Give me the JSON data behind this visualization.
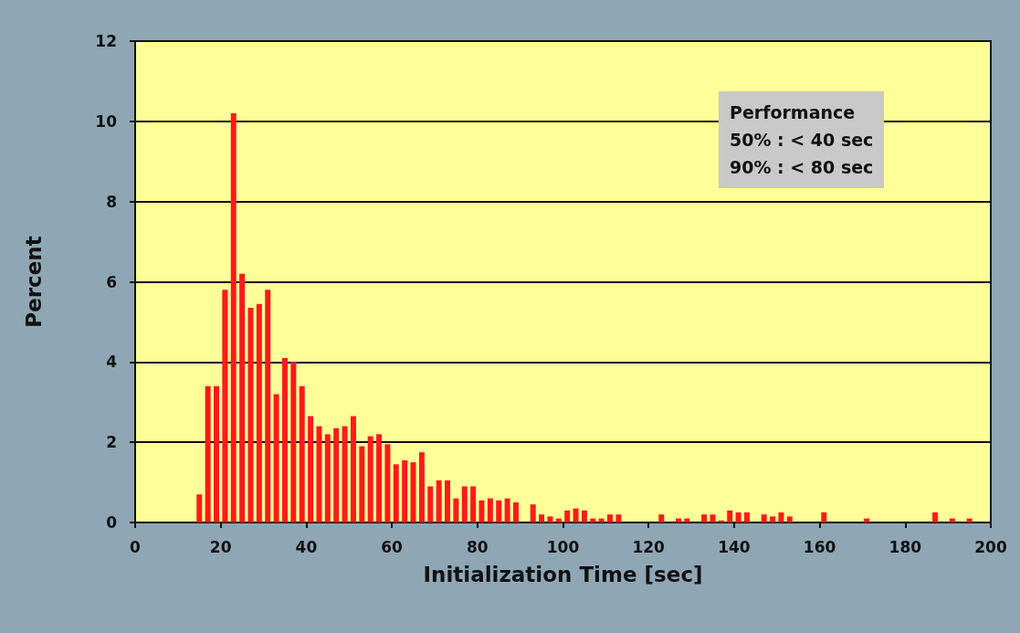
{
  "chart_data": {
    "type": "histogram",
    "xlabel": "Initialization Time [sec]",
    "ylabel": "Percent",
    "bins": [
      14,
      16,
      18,
      20,
      22,
      24,
      26,
      28,
      30,
      32,
      34,
      36,
      38,
      40,
      42,
      44,
      46,
      48,
      50,
      52,
      54,
      56,
      58,
      60,
      62,
      64,
      66,
      68,
      70,
      72,
      74,
      76,
      78,
      80,
      82,
      84,
      86,
      88,
      90,
      92,
      94,
      96,
      98,
      100,
      102,
      104,
      106,
      108,
      110,
      112,
      114,
      116,
      118,
      120,
      122,
      124,
      126,
      128,
      130,
      132,
      134,
      136,
      138,
      140,
      142,
      144,
      146,
      148,
      150,
      152,
      154,
      156,
      158,
      160,
      162,
      164,
      166,
      168,
      170,
      172,
      174,
      176,
      178,
      180,
      182,
      184,
      186,
      188,
      190,
      192,
      194,
      196
    ],
    "values": [
      0.7,
      3.4,
      3.4,
      5.8,
      10.2,
      6.2,
      5.35,
      5.45,
      5.8,
      3.2,
      4.1,
      4.0,
      3.4,
      2.65,
      2.4,
      2.2,
      2.35,
      2.4,
      2.65,
      1.9,
      2.15,
      2.2,
      1.95,
      1.45,
      1.55,
      1.5,
      1.75,
      0.9,
      1.05,
      1.05,
      0.6,
      0.9,
      0.9,
      0.55,
      0.6,
      0.55,
      0.6,
      0.5,
      0,
      0.45,
      0.2,
      0.15,
      0.1,
      0.3,
      0.35,
      0.3,
      0.1,
      0.1,
      0.2,
      0.2,
      0,
      0,
      0,
      0,
      0.2,
      0,
      0.1,
      0.1,
      0,
      0.2,
      0.2,
      0.05,
      0.3,
      0.25,
      0.25,
      0,
      0.2,
      0.15,
      0.25,
      0.15,
      0,
      0,
      0,
      0.25,
      0,
      0,
      0,
      0,
      0.1,
      0,
      0,
      0,
      0,
      0,
      0,
      0,
      0.25,
      0,
      0.1,
      0,
      0.1
    ],
    "color": "#ff1a1a",
    "xlim": [
      0,
      200
    ],
    "xticks": [
      0,
      20,
      40,
      60,
      80,
      100,
      120,
      140,
      160,
      180,
      200
    ],
    "ylim": [
      0,
      12
    ],
    "yticks": [
      0,
      2,
      4,
      6,
      8,
      10,
      12
    ],
    "grid": "y",
    "annotations": [
      "Performance",
      "50% : < 40 sec",
      "90% : < 80 sec"
    ]
  }
}
